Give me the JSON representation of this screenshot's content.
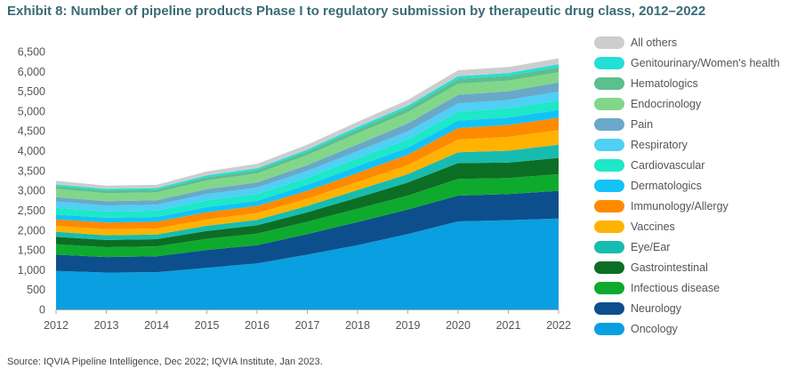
{
  "title": "Exhibit 8: Number of pipeline products Phase I to regulatory submission by therapeutic drug class, 2012–2022",
  "source": "Source: IQVIA Pipeline Intelligence, Dec 2022; IQVIA Institute, Jan 2023.",
  "chart_data": {
    "type": "area",
    "stacked": true,
    "x": [
      "2012",
      "2013",
      "2014",
      "2015",
      "2016",
      "2017",
      "2018",
      "2019",
      "2020",
      "2021",
      "2022"
    ],
    "ylim": [
      0,
      6500
    ],
    "yticks": [
      "0",
      "500",
      "1,000",
      "1,500",
      "2,000",
      "2,500",
      "3,000",
      "3,500",
      "4,000",
      "4,500",
      "5,000",
      "5,500",
      "6,000",
      "6,500"
    ],
    "ytick_values": [
      0,
      500,
      1000,
      1500,
      2000,
      2500,
      3000,
      3500,
      4000,
      4500,
      5000,
      5500,
      6000,
      6500
    ],
    "grid": false,
    "legend_position": "right",
    "series": [
      {
        "name": "Oncology",
        "color": "#0a9fe0",
        "values": [
          970,
          930,
          940,
          1050,
          1160,
          1380,
          1620,
          1900,
          2220,
          2250,
          2290
        ]
      },
      {
        "name": "Neurology",
        "color": "#0c4f8c",
        "values": [
          410,
          390,
          400,
          450,
          460,
          520,
          580,
          620,
          650,
          660,
          700
        ]
      },
      {
        "name": "Infectious disease",
        "color": "#0eaa2e",
        "values": [
          260,
          250,
          250,
          280,
          290,
          310,
          340,
          350,
          420,
          400,
          420
        ]
      },
      {
        "name": "Gastrointestinal",
        "color": "#0c6e24",
        "values": [
          190,
          180,
          180,
          200,
          210,
          240,
          280,
          330,
          400,
          390,
          410
        ]
      },
      {
        "name": "Eye/Ear",
        "color": "#17bcb0",
        "values": [
          130,
          120,
          120,
          130,
          140,
          160,
          190,
          210,
          270,
          300,
          330
        ]
      },
      {
        "name": "Vaccines",
        "color": "#ffb300",
        "values": [
          150,
          150,
          150,
          160,
          170,
          180,
          200,
          230,
          320,
          350,
          370
        ]
      },
      {
        "name": "Immunology/Allergy",
        "color": "#ff8a00",
        "values": [
          160,
          170,
          170,
          180,
          180,
          200,
          230,
          260,
          290,
          300,
          310
        ]
      },
      {
        "name": "Dermatologics",
        "color": "#13c3f5",
        "values": [
          120,
          120,
          120,
          130,
          130,
          150,
          170,
          180,
          190,
          190,
          200
        ]
      },
      {
        "name": "Cardiovascular",
        "color": "#1de8c8",
        "values": [
          170,
          160,
          160,
          170,
          170,
          180,
          200,
          210,
          220,
          230,
          240
        ]
      },
      {
        "name": "Respiratory",
        "color": "#4fd0f5",
        "values": [
          160,
          150,
          150,
          160,
          160,
          170,
          180,
          200,
          210,
          210,
          220
        ]
      },
      {
        "name": "Pain",
        "color": "#6aa8c9",
        "values": [
          110,
          110,
          110,
          120,
          130,
          150,
          170,
          200,
          220,
          220,
          230
        ]
      },
      {
        "name": "Endocrinology",
        "color": "#82d68a",
        "values": [
          210,
          200,
          200,
          220,
          230,
          250,
          280,
          280,
          280,
          270,
          260
        ]
      },
      {
        "name": "Hematologics",
        "color": "#5cbf8e",
        "values": [
          70,
          70,
          70,
          80,
          80,
          90,
          100,
          110,
          120,
          120,
          130
        ]
      },
      {
        "name": "Genitourinary/Women's health",
        "color": "#22e0d6",
        "values": [
          40,
          40,
          40,
          50,
          50,
          50,
          60,
          60,
          70,
          70,
          70
        ]
      },
      {
        "name": "All others",
        "color": "#cbcdcf",
        "values": [
          90,
          80,
          80,
          100,
          110,
          120,
          130,
          140,
          150,
          150,
          150
        ]
      }
    ]
  }
}
